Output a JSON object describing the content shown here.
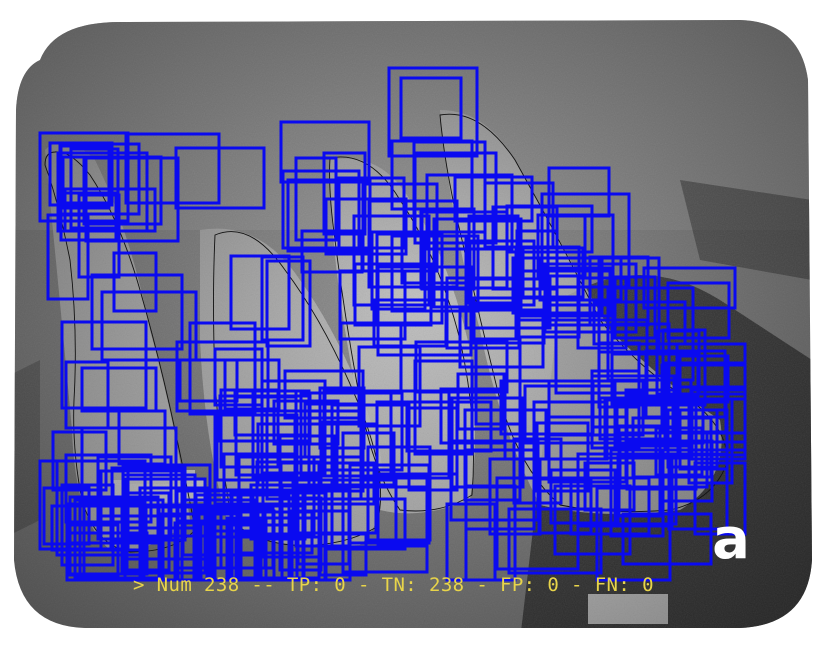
{
  "figure": {
    "panel_letter": "a",
    "stats_text": "> Num 238 -- TP: 0 - TN: 238 - FP: 0 - FN: 0",
    "image_kind": "dental periapical radiograph with detection boxes",
    "box_color": "#0a0af0",
    "text_color": "#e8d44a",
    "tooth_outline_color": "#111111"
  }
}
